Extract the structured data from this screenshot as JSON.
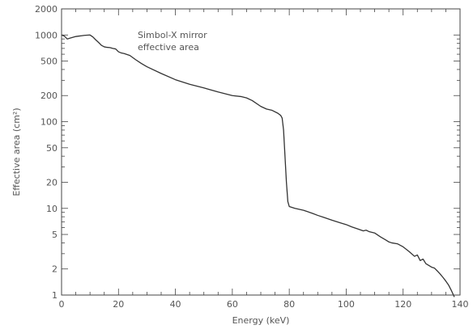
{
  "chart_data": {
    "type": "line",
    "annotation": [
      "Simbol-X mirror",
      "effective area"
    ],
    "xlabel": "Energy (keV)",
    "ylabel": "Effective area (cm²)",
    "xlim": [
      0,
      140
    ],
    "ylim": [
      1,
      2000
    ],
    "yscale": "log",
    "grid": false,
    "xticks": [
      "0",
      "20",
      "40",
      "60",
      "80",
      "100",
      "120",
      "140"
    ],
    "yticks": [
      "1",
      "2",
      "5",
      "10",
      "20",
      "50",
      "100",
      "200",
      "500",
      "1000",
      "2000"
    ],
    "series": [
      {
        "x": [
          0,
          1,
          2,
          3,
          4,
          5,
          6,
          7,
          8,
          9,
          10,
          11,
          12,
          13,
          14,
          15,
          16,
          17,
          18,
          19,
          20,
          21,
          22,
          24,
          26,
          28,
          30,
          35,
          40,
          45,
          50,
          55,
          60,
          63,
          65,
          67,
          70,
          72,
          74,
          76,
          77,
          77.5,
          78,
          78.5,
          79,
          79.5,
          80,
          82,
          85,
          88,
          90,
          92,
          95,
          98,
          100,
          102,
          104,
          106,
          107,
          108,
          110,
          112,
          114,
          115,
          116,
          118,
          120,
          122,
          124,
          125,
          126,
          127,
          128,
          129,
          130,
          131,
          132,
          133,
          134,
          135,
          136,
          137,
          138
        ],
        "y": [
          1000,
          970,
          900,
          920,
          940,
          960,
          970,
          980,
          990,
          995,
          1000,
          950,
          880,
          820,
          760,
          730,
          720,
          715,
          700,
          690,
          640,
          620,
          610,
          580,
          520,
          470,
          430,
          360,
          305,
          270,
          245,
          220,
          200,
          195,
          188,
          175,
          150,
          140,
          135,
          125,
          118,
          110,
          80,
          40,
          20,
          12,
          10.5,
          10,
          9.5,
          8.8,
          8.3,
          7.9,
          7.3,
          6.8,
          6.5,
          6.1,
          5.8,
          5.5,
          5.6,
          5.4,
          5.2,
          4.7,
          4.3,
          4.1,
          4.0,
          3.9,
          3.6,
          3.2,
          2.8,
          2.9,
          2.5,
          2.6,
          2.3,
          2.2,
          2.1,
          2.05,
          1.9,
          1.75,
          1.6,
          1.45,
          1.3,
          1.12,
          0.95
        ]
      }
    ]
  }
}
